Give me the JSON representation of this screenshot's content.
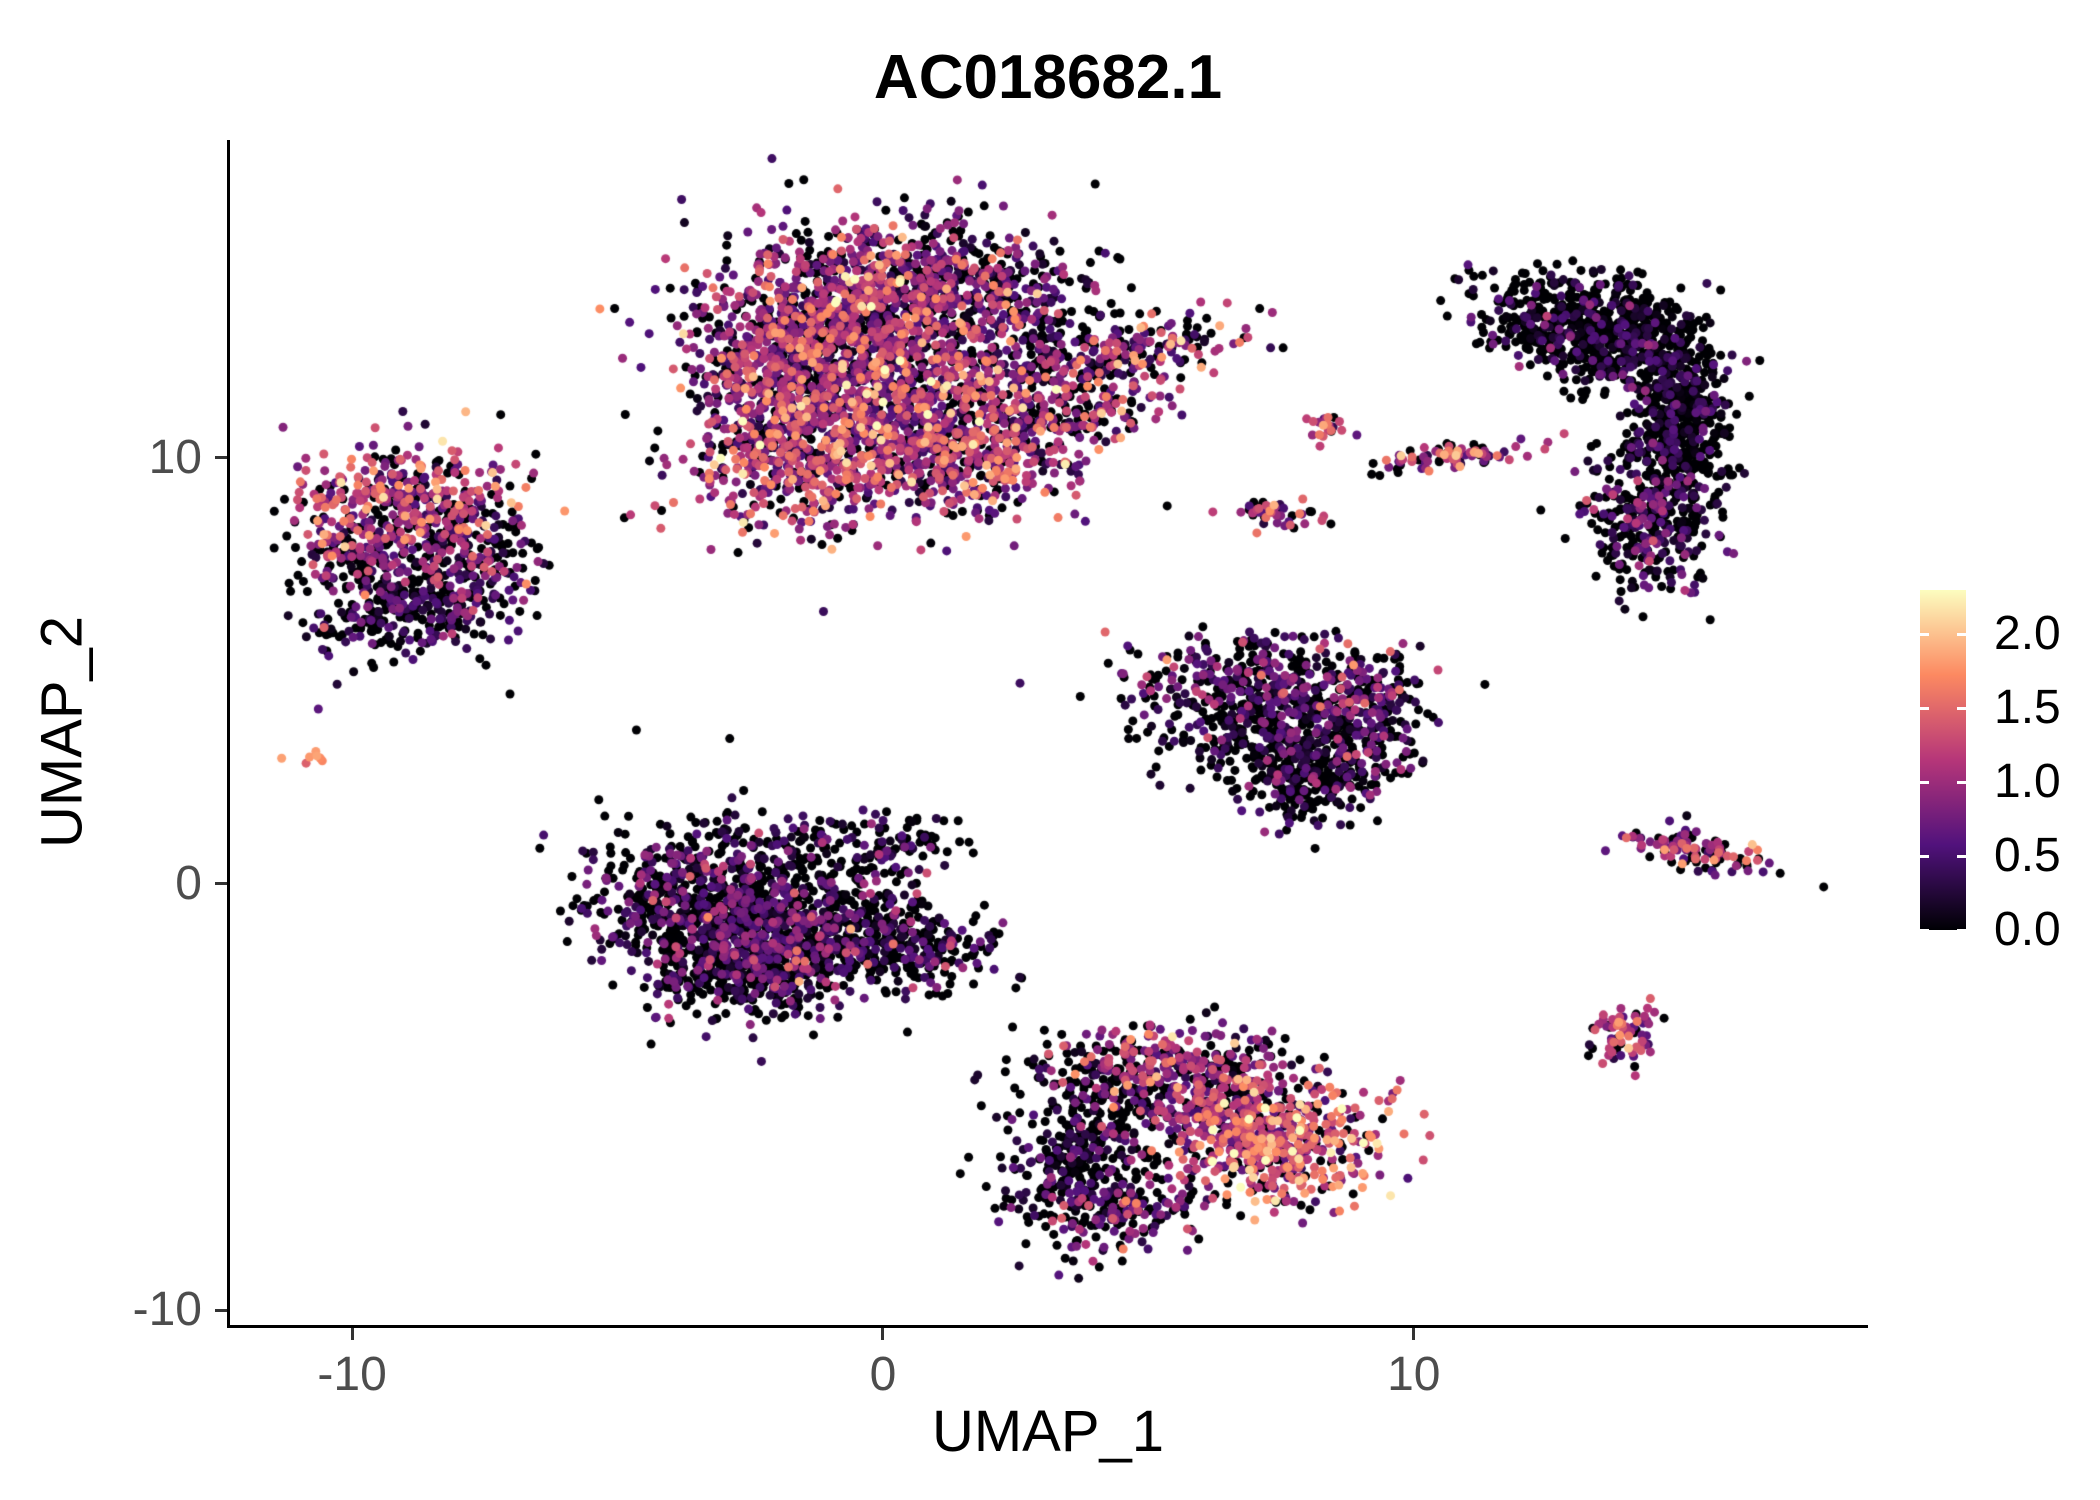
{
  "chart_data": {
    "type": "scatter",
    "title": "AC018682.1",
    "xlabel": "UMAP_1",
    "ylabel": "UMAP_2",
    "xlim": [
      -12.3,
      18.5
    ],
    "ylim": [
      -10.35,
      17.45
    ],
    "grid": false,
    "xticks": [
      {
        "value": -10,
        "label": "-10"
      },
      {
        "value": 0,
        "label": "0"
      },
      {
        "value": 10,
        "label": "10"
      }
    ],
    "yticks": [
      {
        "value": -10,
        "label": "-10"
      },
      {
        "value": 0,
        "label": "0"
      },
      {
        "value": 10,
        "label": "10"
      }
    ],
    "legend": {
      "position": "right",
      "domain": [
        0,
        2.3
      ],
      "ticks": [
        {
          "value": 0.0,
          "label": "0.0"
        },
        {
          "value": 0.5,
          "label": "0.5"
        },
        {
          "value": 1.0,
          "label": "1.0"
        },
        {
          "value": 1.5,
          "label": "1.5"
        },
        {
          "value": 2.0,
          "label": "2.0"
        }
      ],
      "colormap": {
        "name": "magma",
        "stops": [
          [
            0,
            "#000004"
          ],
          [
            0.25,
            "#51127c"
          ],
          [
            0.5,
            "#b63679"
          ],
          [
            0.75,
            "#fc8961"
          ],
          [
            1,
            "#fcfdbf"
          ]
        ]
      }
    },
    "points_model": {
      "seed": 7,
      "point_radius": 4.5,
      "draw_order": "value-ascending",
      "components": [
        {
          "cluster": "top-center-main",
          "cx": -0.9,
          "cy": 13.0,
          "sx": 1.35,
          "sy": 1.15,
          "rot": 0,
          "n": 900,
          "p0": 0.25,
          "mu": 0.85,
          "sd": 0.5
        },
        {
          "cluster": "top-center-main",
          "cx": 0.7,
          "cy": 13.9,
          "sx": 1.15,
          "sy": 0.85,
          "rot": 0,
          "n": 550,
          "p0": 0.3,
          "mu": 0.8,
          "sd": 0.5
        },
        {
          "cluster": "top-center-main",
          "cx": 0.2,
          "cy": 11.0,
          "sx": 1.5,
          "sy": 1.0,
          "rot": 0,
          "n": 800,
          "p0": 0.2,
          "mu": 1.0,
          "sd": 0.55
        },
        {
          "cluster": "top-center-main",
          "cx": -1.7,
          "cy": 9.7,
          "sx": 0.9,
          "sy": 0.8,
          "rot": 0,
          "n": 320,
          "p0": 0.18,
          "mu": 1.1,
          "sd": 0.55
        },
        {
          "cluster": "top-center-main",
          "cx": 1.7,
          "cy": 9.9,
          "sx": 0.95,
          "sy": 0.7,
          "rot": 0,
          "n": 300,
          "p0": 0.25,
          "mu": 0.95,
          "sd": 0.5
        },
        {
          "cluster": "top-center-main",
          "cx": -2.0,
          "cy": 11.8,
          "sx": 0.7,
          "sy": 0.9,
          "rot": 0,
          "n": 250,
          "p0": 0.25,
          "mu": 0.9,
          "sd": 0.5
        },
        {
          "cluster": "top-center-arm",
          "cx": 4.3,
          "cy": 12.4,
          "sx": 1.25,
          "sy": 0.4,
          "rot": 14,
          "n": 260,
          "p0": 0.3,
          "mu": 0.9,
          "sd": 0.55
        },
        {
          "cluster": "top-center-arm",
          "cx": 3.6,
          "cy": 11.0,
          "sx": 0.85,
          "sy": 0.35,
          "rot": 8,
          "n": 150,
          "p0": 0.3,
          "mu": 0.95,
          "sd": 0.5
        },
        {
          "cluster": "top-center-main",
          "cx": 2.7,
          "cy": 13.6,
          "sx": 0.8,
          "sy": 0.9,
          "rot": 0,
          "n": 160,
          "p0": 0.5,
          "mu": 0.5,
          "sd": 0.4
        },
        {
          "cluster": "left",
          "cx": -8.9,
          "cy": 9.0,
          "sx": 1.0,
          "sy": 0.7,
          "rot": 0,
          "n": 360,
          "p0": 0.25,
          "mu": 1.05,
          "sd": 0.5
        },
        {
          "cluster": "left",
          "cx": -7.7,
          "cy": 7.5,
          "sx": 0.6,
          "sy": 0.85,
          "rot": 0,
          "n": 220,
          "p0": 0.45,
          "mu": 0.6,
          "sd": 0.45
        },
        {
          "cluster": "left",
          "cx": -9.1,
          "cy": 6.4,
          "sx": 0.85,
          "sy": 0.55,
          "rot": 0,
          "n": 260,
          "p0": 0.55,
          "mu": 0.4,
          "sd": 0.35
        },
        {
          "cluster": "left",
          "cx": -9.9,
          "cy": 7.9,
          "sx": 0.5,
          "sy": 0.6,
          "rot": 0,
          "n": 140,
          "p0": 0.35,
          "mu": 0.8,
          "sd": 0.45
        },
        {
          "cluster": "far-left-dot",
          "cx": -10.8,
          "cy": 3.0,
          "sx": 0.13,
          "sy": 0.12,
          "rot": 0,
          "n": 7,
          "p0": 0,
          "mu": 1.6,
          "sd": 0.25
        },
        {
          "cluster": "center-left",
          "cx": -3.4,
          "cy": -0.5,
          "sx": 1.1,
          "sy": 0.95,
          "rot": 0,
          "n": 700,
          "p0": 0.52,
          "mu": 0.5,
          "sd": 0.4
        },
        {
          "cluster": "center-left",
          "cx": -1.7,
          "cy": -1.2,
          "sx": 1.1,
          "sy": 0.8,
          "rot": 0,
          "n": 560,
          "p0": 0.5,
          "mu": 0.5,
          "sd": 0.4
        },
        {
          "cluster": "center-left",
          "cx": 0.5,
          "cy": -1.4,
          "sx": 0.95,
          "sy": 0.5,
          "rot": -8,
          "n": 260,
          "p0": 0.55,
          "mu": 0.45,
          "sd": 0.4
        },
        {
          "cluster": "center-left",
          "cx": -0.7,
          "cy": 0.8,
          "sx": 0.9,
          "sy": 0.5,
          "rot": 0,
          "n": 130,
          "p0": 0.6,
          "mu": 0.35,
          "sd": 0.35
        },
        {
          "cluster": "center-left",
          "cx": -2.6,
          "cy": -2.3,
          "sx": 0.85,
          "sy": 0.4,
          "rot": 0,
          "n": 180,
          "p0": 0.55,
          "mu": 0.45,
          "sd": 0.35
        },
        {
          "cluster": "center-left",
          "cx": 0.3,
          "cy": 0.8,
          "sx": 0.5,
          "sy": 0.35,
          "rot": 0,
          "n": 40,
          "p0": 0.5,
          "mu": 0.4,
          "sd": 0.3
        },
        {
          "cluster": "mid-right-triangle",
          "cx": 7.3,
          "cy": 4.7,
          "sx": 1.35,
          "sy": 0.55,
          "rot": 0,
          "n": 380,
          "p0": 0.42,
          "mu": 0.55,
          "sd": 0.45
        },
        {
          "cluster": "mid-right-triangle",
          "cx": 7.5,
          "cy": 3.5,
          "sx": 1.05,
          "sy": 0.6,
          "rot": 0,
          "n": 340,
          "p0": 0.62,
          "mu": 0.35,
          "sd": 0.35
        },
        {
          "cluster": "mid-right-triangle",
          "cx": 8.1,
          "cy": 2.4,
          "sx": 0.65,
          "sy": 0.5,
          "rot": 0,
          "n": 200,
          "p0": 0.6,
          "mu": 0.35,
          "sd": 0.35
        },
        {
          "cluster": "mid-right-triangle",
          "cx": 9.2,
          "cy": 3.9,
          "sx": 0.4,
          "sy": 0.75,
          "rot": 0,
          "n": 130,
          "p0": 0.42,
          "mu": 0.6,
          "sd": 0.4
        },
        {
          "cluster": "bottom-center",
          "cx": 3.6,
          "cy": -6.3,
          "sx": 0.7,
          "sy": 1.0,
          "rot": 0,
          "n": 360,
          "p0": 0.62,
          "mu": 0.3,
          "sd": 0.3
        },
        {
          "cluster": "bottom-center",
          "cx": 5.3,
          "cy": -4.3,
          "sx": 1.05,
          "sy": 0.5,
          "rot": 8,
          "n": 280,
          "p0": 0.35,
          "mu": 0.8,
          "sd": 0.45
        },
        {
          "cluster": "bottom-center",
          "cx": 6.1,
          "cy": -5.4,
          "sx": 1.0,
          "sy": 0.7,
          "rot": 0,
          "n": 330,
          "p0": 0.3,
          "mu": 0.9,
          "sd": 0.5
        },
        {
          "cluster": "bottom-center-bright",
          "cx": 7.6,
          "cy": -6.1,
          "sx": 0.9,
          "sy": 0.75,
          "rot": 0,
          "n": 430,
          "p0": 0.15,
          "mu": 1.3,
          "sd": 0.45
        },
        {
          "cluster": "bottom-center",
          "cx": 4.4,
          "cy": -7.7,
          "sx": 0.85,
          "sy": 0.4,
          "rot": 0,
          "n": 150,
          "p0": 0.4,
          "mu": 0.7,
          "sd": 0.45
        },
        {
          "cluster": "right-crescent",
          "cx": 12.9,
          "cy": 13.5,
          "sx": 0.95,
          "sy": 0.5,
          "rot": -10,
          "n": 240,
          "p0": 0.72,
          "mu": 0.25,
          "sd": 0.3
        },
        {
          "cluster": "right-crescent",
          "cx": 14.2,
          "cy": 12.9,
          "sx": 0.8,
          "sy": 0.55,
          "rot": -35,
          "n": 280,
          "p0": 0.72,
          "mu": 0.25,
          "sd": 0.3
        },
        {
          "cluster": "right-crescent",
          "cx": 15.0,
          "cy": 11.4,
          "sx": 0.45,
          "sy": 0.85,
          "rot": 0,
          "n": 290,
          "p0": 0.7,
          "mu": 0.3,
          "sd": 0.3
        },
        {
          "cluster": "right-crescent",
          "cx": 14.9,
          "cy": 9.8,
          "sx": 0.5,
          "sy": 0.85,
          "rot": 0,
          "n": 270,
          "p0": 0.66,
          "mu": 0.3,
          "sd": 0.32
        },
        {
          "cluster": "right-crescent",
          "cx": 14.3,
          "cy": 8.3,
          "sx": 0.55,
          "sy": 0.7,
          "rot": 20,
          "n": 250,
          "p0": 0.5,
          "mu": 0.5,
          "sd": 0.4
        },
        {
          "cluster": "right-crescent",
          "cx": 13.4,
          "cy": 12.4,
          "sx": 0.5,
          "sy": 0.5,
          "rot": 0,
          "n": 140,
          "p0": 0.7,
          "mu": 0.3,
          "sd": 0.3
        },
        {
          "cluster": "right-crescent",
          "cx": 12.3,
          "cy": 13.0,
          "sx": 0.4,
          "sy": 0.4,
          "rot": 0,
          "n": 90,
          "p0": 0.72,
          "mu": 0.25,
          "sd": 0.3
        },
        {
          "cluster": "small-mid-dot",
          "cx": 8.4,
          "cy": 10.7,
          "sx": 0.22,
          "sy": 0.18,
          "rot": 0,
          "n": 24,
          "p0": 0.2,
          "mu": 1.1,
          "sd": 0.4
        },
        {
          "cluster": "small-mid-streak",
          "cx": 10.6,
          "cy": 10.0,
          "sx": 0.85,
          "sy": 0.17,
          "rot": 10,
          "n": 90,
          "p0": 0.3,
          "mu": 1.1,
          "sd": 0.4
        },
        {
          "cluster": "small-mid-streak2",
          "cx": 7.5,
          "cy": 8.7,
          "sx": 0.5,
          "sy": 0.17,
          "rot": -12,
          "n": 46,
          "p0": 0.3,
          "mu": 1.0,
          "sd": 0.4
        },
        {
          "cluster": "right-streak",
          "cx": 15.3,
          "cy": 0.8,
          "sx": 0.75,
          "sy": 0.22,
          "rot": -16,
          "n": 110,
          "p0": 0.3,
          "mu": 1.0,
          "sd": 0.45
        },
        {
          "cluster": "bottom-right-dot",
          "cx": 14.0,
          "cy": -3.6,
          "sx": 0.32,
          "sy": 0.35,
          "rot": 0,
          "n": 70,
          "p0": 0.25,
          "mu": 1.05,
          "sd": 0.4
        }
      ]
    }
  },
  "colors": {
    "background": "#ffffff",
    "axis_line": "#000000",
    "tick_label": "#4d4d4d",
    "title": "#000000"
  }
}
